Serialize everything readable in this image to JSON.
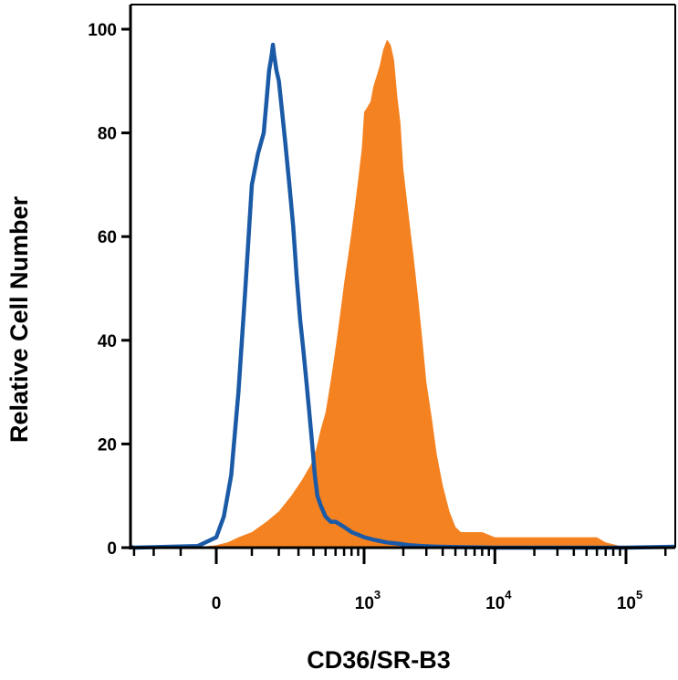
{
  "chart_data": {
    "type": "area",
    "title": "",
    "xlabel": "CD36/SR-B3",
    "ylabel": "Relative Cell Number",
    "x_scale": "biexponential",
    "xlim": [
      -700,
      200000
    ],
    "ylim": [
      0,
      100
    ],
    "y_ticks": [
      {
        "value": 0,
        "label": "0"
      },
      {
        "value": 20,
        "label": "20"
      },
      {
        "value": 40,
        "label": "40"
      },
      {
        "value": 60,
        "label": "60"
      },
      {
        "value": 80,
        "label": "80"
      },
      {
        "value": 100,
        "label": "100"
      }
    ],
    "x_ticks": [
      {
        "value": 0,
        "base": "0",
        "exp": ""
      },
      {
        "value": 1000,
        "base": "10",
        "exp": "3"
      },
      {
        "value": 10000,
        "base": "10",
        "exp": "4"
      },
      {
        "value": 100000,
        "base": "10",
        "exp": "5"
      }
    ],
    "grid": false,
    "legend": "none",
    "series": [
      {
        "style": "filled",
        "color": "#f58220",
        "x": [
          -60,
          0,
          30,
          60,
          100,
          150,
          200,
          260,
          320,
          380,
          420,
          460,
          500,
          540,
          580,
          620,
          660,
          700,
          750,
          800,
          850,
          900,
          960,
          1000,
          1060,
          1120,
          1180,
          1250,
          1320,
          1400,
          1450,
          1500,
          1600,
          1700,
          1800,
          1900,
          2000,
          2200,
          2400,
          2600,
          2800,
          3000,
          3300,
          3600,
          4000,
          4500,
          5000,
          5500,
          6000,
          7000,
          8000,
          10000,
          13000,
          17000,
          22000,
          30000,
          40000,
          50000,
          60000,
          70000,
          85000,
          100000
        ],
        "y": [
          0,
          0.5,
          1,
          2,
          3,
          5,
          7,
          10,
          13,
          16,
          19,
          23,
          26,
          31,
          36,
          41,
          46,
          51,
          56,
          61,
          66,
          71,
          77,
          84,
          85,
          86,
          89,
          91,
          93,
          96,
          97,
          98,
          97,
          94,
          87,
          82,
          73,
          64,
          56,
          48,
          40,
          32,
          25,
          18,
          12,
          7,
          4,
          3,
          3,
          3,
          3,
          2,
          2,
          2,
          2,
          2,
          2,
          2,
          2,
          1,
          0.5,
          0
        ]
      },
      {
        "style": "line",
        "color": "#1b5aa6",
        "x": [
          -300,
          -50,
          0,
          20,
          40,
          60,
          80,
          100,
          120,
          140,
          150,
          160,
          170,
          175,
          180,
          190,
          200,
          215,
          230,
          250,
          270,
          290,
          310,
          330,
          350,
          370,
          390,
          410,
          430,
          460,
          500,
          550,
          600,
          700,
          800,
          900,
          1000,
          1200,
          1500,
          1800,
          2200,
          2800,
          3500,
          5000,
          10000,
          100000
        ],
        "y": [
          0,
          0.3,
          2,
          6,
          14,
          30,
          50,
          70,
          76,
          80,
          86,
          92,
          95,
          97,
          95,
          92,
          90,
          84,
          78,
          70,
          62,
          52,
          44,
          38,
          32,
          26,
          20,
          14,
          10,
          8,
          6,
          5,
          5,
          4,
          3,
          2.5,
          2,
          1.5,
          1,
          0.8,
          0.5,
          0.3,
          0.2,
          0.1,
          0,
          0
        ]
      }
    ]
  }
}
